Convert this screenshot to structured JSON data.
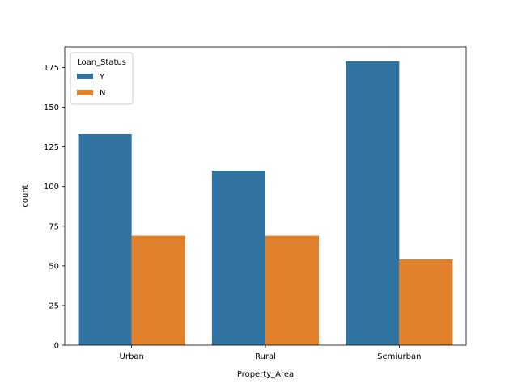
{
  "chart_data": {
    "type": "bar",
    "xlabel": "Property_Area",
    "ylabel": "count",
    "categories": [
      "Urban",
      "Rural",
      "Semiurban"
    ],
    "series": [
      {
        "name": "Y",
        "values": [
          133,
          110,
          179
        ],
        "color": "#3274a1"
      },
      {
        "name": "N",
        "values": [
          69,
          69,
          54
        ],
        "color": "#e1812c"
      }
    ],
    "ylim": [
      0,
      188
    ],
    "yticks": [
      0,
      25,
      50,
      75,
      100,
      125,
      150,
      175
    ],
    "grid": false,
    "legend": {
      "title": "Loan_Status",
      "placement": "top-left"
    }
  }
}
